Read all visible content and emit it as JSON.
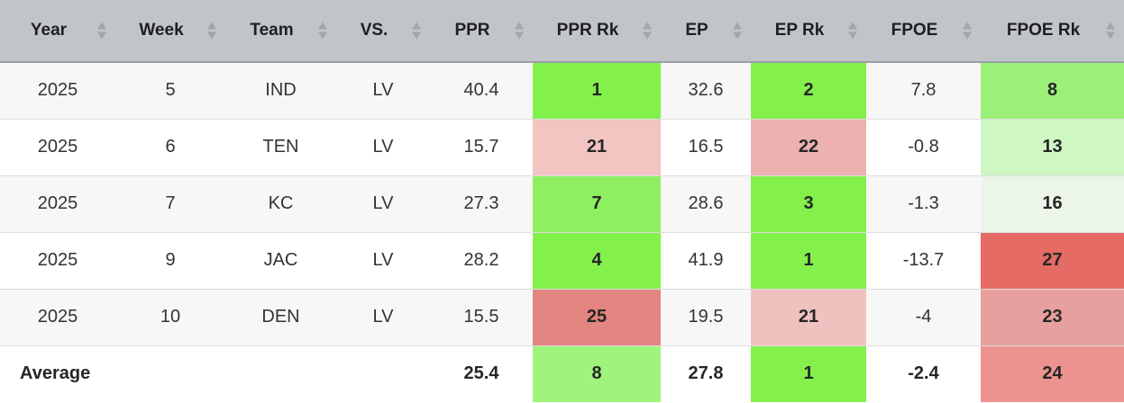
{
  "headers": [
    "Year",
    "Week",
    "Team",
    "VS.",
    "PPR",
    "PPR Rk",
    "EP",
    "EP Rk",
    "FPOE",
    "FPOE Rk"
  ],
  "rows": [
    {
      "year": "2025",
      "week": "5",
      "team": "IND",
      "vs": "LV",
      "ppr": "40.4",
      "ppr_rk": "1",
      "ep": "32.6",
      "ep_rk": "2",
      "fpoe": "7.8",
      "fpoe_rk": "8"
    },
    {
      "year": "2025",
      "week": "6",
      "team": "TEN",
      "vs": "LV",
      "ppr": "15.7",
      "ppr_rk": "21",
      "ep": "16.5",
      "ep_rk": "22",
      "fpoe": "-0.8",
      "fpoe_rk": "13"
    },
    {
      "year": "2025",
      "week": "7",
      "team": "KC",
      "vs": "LV",
      "ppr": "27.3",
      "ppr_rk": "7",
      "ep": "28.6",
      "ep_rk": "3",
      "fpoe": "-1.3",
      "fpoe_rk": "16"
    },
    {
      "year": "2025",
      "week": "9",
      "team": "JAC",
      "vs": "LV",
      "ppr": "28.2",
      "ppr_rk": "4",
      "ep": "41.9",
      "ep_rk": "1",
      "fpoe": "-13.7",
      "fpoe_rk": "27"
    },
    {
      "year": "2025",
      "week": "10",
      "team": "DEN",
      "vs": "LV",
      "ppr": "15.5",
      "ppr_rk": "25",
      "ep": "19.5",
      "ep_rk": "21",
      "fpoe": "-4",
      "fpoe_rk": "23"
    }
  ],
  "average": {
    "label": "Average",
    "ppr": "25.4",
    "ppr_rk": "8",
    "ep": "27.8",
    "ep_rk": "1",
    "fpoe": "-2.4",
    "fpoe_rk": "24"
  },
  "rank_colors": {
    "rows": [
      {
        "ppr_rk": "#84f04c",
        "ep_rk": "#84f04c",
        "fpoe_rk": "#9bf078"
      },
      {
        "ppr_rk": "#f2c4c2",
        "ep_rk": "#edb1af",
        "fpoe_rk": "#cff7c4"
      },
      {
        "ppr_rk": "#8ef060",
        "ep_rk": "#84f04c",
        "fpoe_rk": "#ecf6e8"
      },
      {
        "ppr_rk": "#84f04c",
        "ep_rk": "#84f04c",
        "fpoe_rk": "#e56b64"
      },
      {
        "ppr_rk": "#e38580",
        "ep_rk": "#efc2c0",
        "fpoe_rk": "#e7a09d"
      }
    ],
    "average": {
      "ppr_rk": "#a0f47e",
      "ep_rk": "#84f04c",
      "fpoe_rk": "#ec938f"
    }
  }
}
